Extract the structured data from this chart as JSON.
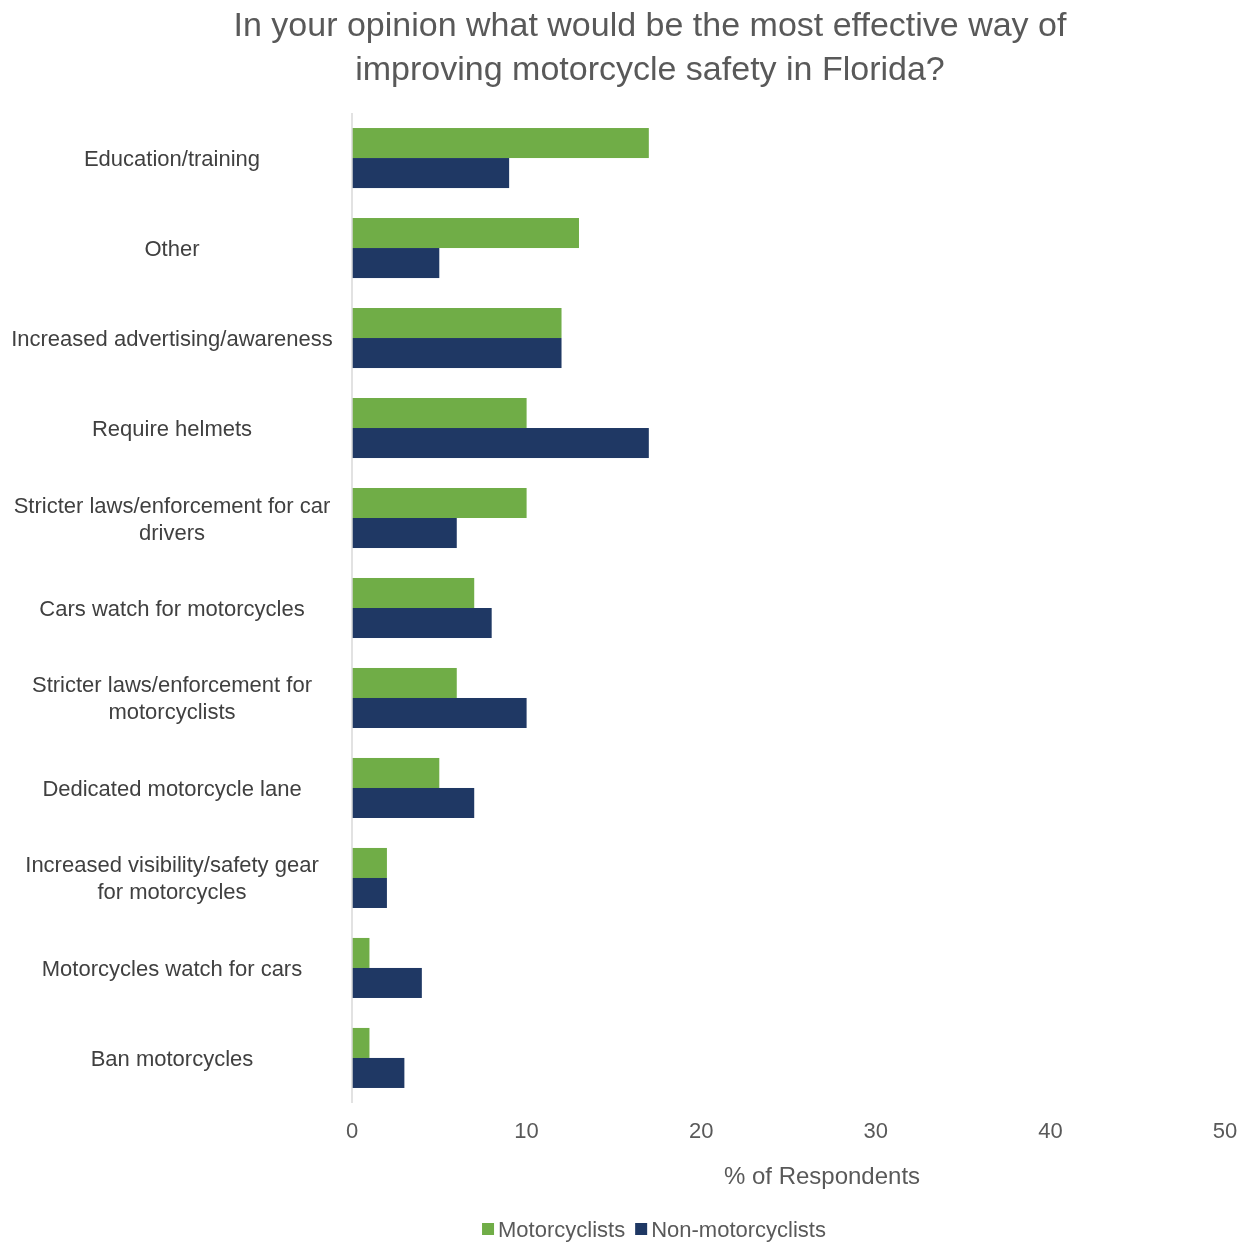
{
  "chart_data": {
    "type": "bar",
    "orientation": "horizontal",
    "title": "In your opinion what would be the most effective way of improving motorcycle safety in Florida?",
    "xlabel": "% of Respondents",
    "categories": [
      "Education/training",
      "Other",
      "Increased advertising/awareness",
      "Require helmets",
      "Stricter laws/enforcement for car drivers",
      "Cars watch for motorcycles",
      "Stricter laws/enforcement for motorcyclists",
      "Dedicated motorcycle lane",
      "Increased visibility/safety gear for motorcycles",
      "Motorcycles watch for cars",
      "Ban motorcycles"
    ],
    "series": [
      {
        "name": "Motorcyclists",
        "color": "#70ad47",
        "values": [
          17,
          13,
          12,
          10,
          10,
          7,
          6,
          5,
          2,
          1,
          1
        ]
      },
      {
        "name": "Non-motorcyclists",
        "color": "#1f3864",
        "values": [
          9,
          5,
          12,
          17,
          6,
          8,
          10,
          7,
          2,
          4,
          3
        ]
      }
    ],
    "xlim": [
      0,
      50
    ],
    "xticks": [
      0,
      10,
      20,
      30,
      40,
      50
    ],
    "grid": false,
    "legend": "bottom"
  }
}
